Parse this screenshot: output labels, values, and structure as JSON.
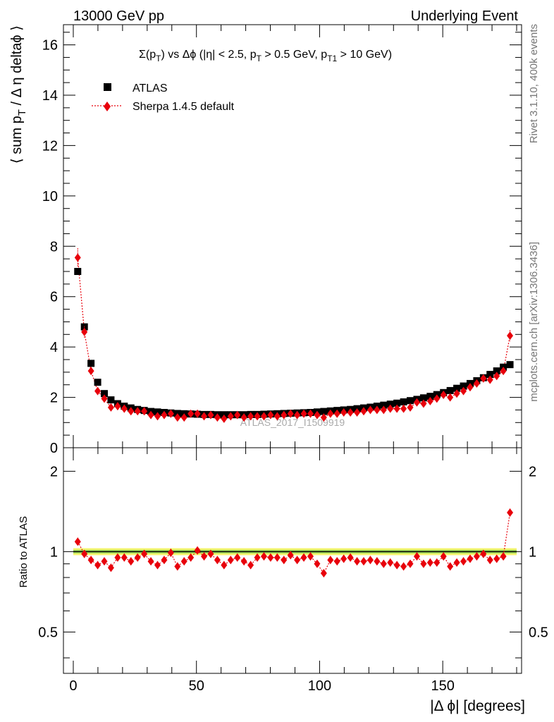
{
  "header": {
    "left": "13000 GeV pp",
    "right": "Underlying Event"
  },
  "side_text": {
    "version": "Rivet 3.1.10,  400k events",
    "source": "mcplots.cern.ch [arXiv:1306.3436]"
  },
  "colors": {
    "data": "#000000",
    "mc": "#e8000b",
    "band_yellow": "#f5f56e",
    "band_green": "#9cd85a"
  },
  "chart_data": [
    {
      "type": "scatter",
      "panel": "main",
      "title_parts": [
        "Σ(p",
        "T",
        ") vs Δϕ (|η| < 2.5, p",
        "T",
        " > 0.5 GeV, p",
        "T1",
        " > 10 GeV)"
      ],
      "ylabel_parts": [
        "⟨ sum p",
        "T",
        " / Δ η deltaϕ ⟩"
      ],
      "watermark": "ATLAS_2017_I1509919",
      "xlim": [
        -4,
        182
      ],
      "ylim": [
        0,
        16.8
      ],
      "yticks": [
        0,
        2,
        4,
        6,
        8,
        10,
        12,
        14,
        16
      ],
      "legend_position": "top-left",
      "x": [
        1.8,
        4.5,
        7.2,
        9.9,
        12.6,
        15.3,
        18.0,
        20.7,
        23.4,
        26.1,
        28.8,
        31.5,
        34.2,
        36.9,
        39.6,
        42.3,
        45.0,
        47.7,
        50.4,
        53.1,
        55.8,
        58.5,
        61.2,
        63.9,
        66.6,
        69.3,
        72.0,
        74.7,
        77.4,
        80.1,
        82.8,
        85.5,
        88.2,
        90.9,
        93.6,
        96.3,
        99.0,
        101.7,
        104.4,
        107.1,
        109.8,
        112.5,
        115.2,
        117.9,
        120.6,
        123.3,
        126.0,
        128.7,
        131.4,
        134.1,
        136.8,
        139.5,
        142.2,
        144.9,
        147.6,
        150.3,
        153.0,
        155.7,
        158.4,
        161.1,
        163.8,
        166.5,
        169.2,
        171.9,
        174.6,
        177.3
      ],
      "series": [
        {
          "name": "ATLAS",
          "marker": "square",
          "values": [
            7.0,
            4.8,
            3.35,
            2.6,
            2.15,
            1.9,
            1.75,
            1.65,
            1.58,
            1.52,
            1.48,
            1.44,
            1.42,
            1.4,
            1.38,
            1.36,
            1.35,
            1.34,
            1.33,
            1.32,
            1.32,
            1.31,
            1.31,
            1.31,
            1.31,
            1.31,
            1.32,
            1.32,
            1.33,
            1.34,
            1.35,
            1.36,
            1.37,
            1.38,
            1.39,
            1.4,
            1.42,
            1.44,
            1.46,
            1.48,
            1.5,
            1.52,
            1.55,
            1.58,
            1.61,
            1.65,
            1.69,
            1.73,
            1.77,
            1.82,
            1.87,
            1.92,
            1.98,
            2.04,
            2.11,
            2.19,
            2.27,
            2.36,
            2.45,
            2.55,
            2.66,
            2.78,
            2.91,
            3.05,
            3.2,
            3.3
          ]
        },
        {
          "name": "Sherpa 1.4.5 default",
          "marker": "diamond",
          "values": [
            7.55,
            4.6,
            3.05,
            2.25,
            1.95,
            1.6,
            1.65,
            1.55,
            1.45,
            1.45,
            1.45,
            1.3,
            1.25,
            1.3,
            1.35,
            1.2,
            1.2,
            1.35,
            1.35,
            1.25,
            1.3,
            1.2,
            1.15,
            1.25,
            1.3,
            1.2,
            1.25,
            1.25,
            1.25,
            1.3,
            1.25,
            1.3,
            1.35,
            1.3,
            1.35,
            1.35,
            1.3,
            1.2,
            1.35,
            1.35,
            1.4,
            1.4,
            1.4,
            1.45,
            1.5,
            1.5,
            1.5,
            1.55,
            1.55,
            1.55,
            1.6,
            1.8,
            1.75,
            1.85,
            1.95,
            2.1,
            2.0,
            2.15,
            2.25,
            2.4,
            2.55,
            2.75,
            2.7,
            2.85,
            3.05,
            4.45
          ]
        }
      ]
    },
    {
      "type": "scatter",
      "panel": "ratio",
      "ylabel": "Ratio to ATLAS",
      "xlabel": "|Δ ϕ| [degrees]",
      "xlim": [
        -4,
        182
      ],
      "ylim": [
        0.35,
        2.45
      ],
      "yticks": [
        0.5,
        1,
        2
      ],
      "ytick_labels": [
        "0.5",
        "1",
        "2"
      ],
      "xticks": [
        0,
        50,
        100,
        150
      ],
      "xtick_labels": [
        "0",
        "50",
        "100",
        "150"
      ],
      "band": {
        "yellow": [
          0.97,
          1.03
        ],
        "green": [
          0.985,
          1.015
        ]
      },
      "series": [
        {
          "name": "Sherpa 1.4.5 default",
          "values": [
            1.09,
            0.98,
            0.93,
            0.89,
            0.92,
            0.87,
            0.95,
            0.95,
            0.92,
            0.95,
            0.98,
            0.92,
            0.89,
            0.93,
            0.99,
            0.88,
            0.92,
            0.95,
            1.01,
            0.96,
            0.98,
            0.93,
            0.89,
            0.93,
            0.95,
            0.92,
            0.89,
            0.95,
            0.96,
            0.95,
            0.95,
            0.93,
            0.97,
            0.93,
            0.95,
            0.96,
            0.9,
            0.83,
            0.93,
            0.92,
            0.94,
            0.95,
            0.92,
            0.92,
            0.93,
            0.92,
            0.9,
            0.91,
            0.89,
            0.88,
            0.9,
            0.96,
            0.9,
            0.91,
            0.91,
            0.96,
            0.88,
            0.91,
            0.92,
            0.94,
            0.96,
            0.98,
            0.93,
            0.94,
            0.96,
            1.4
          ]
        }
      ]
    }
  ]
}
